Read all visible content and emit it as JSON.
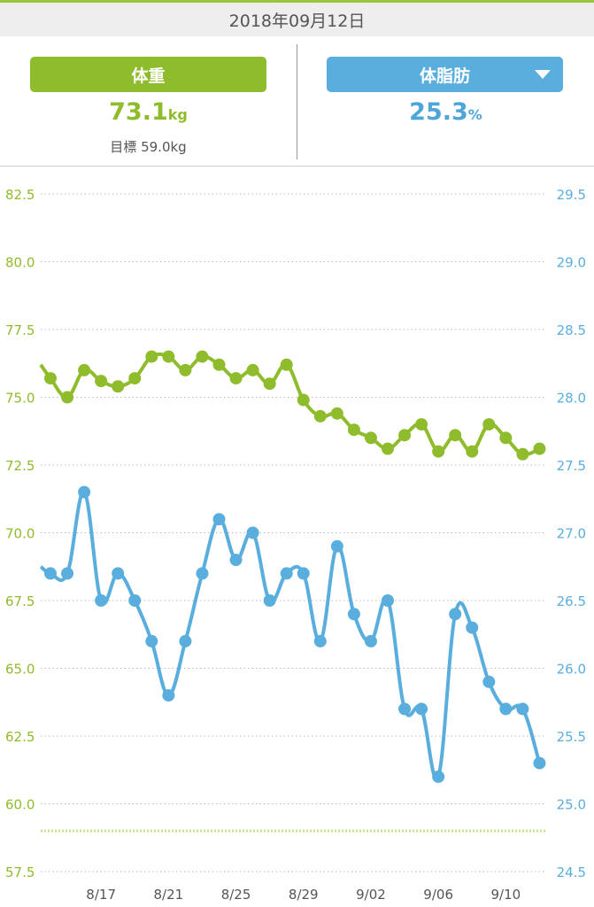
{
  "date_bar": "2018年09月12日",
  "weight": {
    "label": "体重",
    "value": "73.1",
    "unit": "kg",
    "goal_label": "目標",
    "goal_value": "59.0kg"
  },
  "body_fat": {
    "label": "体脂肪",
    "value": "25.3",
    "unit": "%",
    "dropdown_icon": "caret-down-icon"
  },
  "colors": {
    "weight": "#8fbc2c",
    "body_fat": "#5aaede",
    "grid": "#bbbbbb",
    "goal_line": "#c8df8c"
  },
  "chart_data": {
    "type": "line",
    "x": [
      "8/14",
      "8/15",
      "8/16",
      "8/17",
      "8/18",
      "8/19",
      "8/20",
      "8/21",
      "8/22",
      "8/23",
      "8/24",
      "8/25",
      "8/26",
      "8/27",
      "8/28",
      "8/29",
      "8/30",
      "8/31",
      "9/01",
      "9/02",
      "9/03",
      "9/04",
      "9/05",
      "9/06",
      "9/07",
      "9/08",
      "9/09",
      "9/10",
      "9/11",
      "9/12"
    ],
    "x_tick_labels": [
      "8/17",
      "8/21",
      "8/25",
      "8/29",
      "9/02",
      "9/06",
      "9/10"
    ],
    "series": [
      {
        "axis": "left",
        "values": [
          75.7,
          75.0,
          76.0,
          75.6,
          75.4,
          75.7,
          76.5,
          76.5,
          76.0,
          76.5,
          76.2,
          75.7,
          76.0,
          75.5,
          76.2,
          74.9,
          74.3,
          74.4,
          73.8,
          73.5,
          73.1,
          73.6,
          74.0,
          73.0,
          73.6,
          73.0,
          74.0,
          73.5,
          72.9,
          73.1
        ]
      },
      {
        "axis": "right",
        "values": [
          26.7,
          26.7,
          27.3,
          26.5,
          26.7,
          26.5,
          26.2,
          25.8,
          26.2,
          26.7,
          27.1,
          26.8,
          27.0,
          26.5,
          26.7,
          26.7,
          26.2,
          26.9,
          26.4,
          26.2,
          26.5,
          25.7,
          25.7,
          25.2,
          26.4,
          26.3,
          25.9,
          25.7,
          25.7,
          25.3
        ]
      }
    ],
    "y_left": {
      "ticks": [
        "82.5",
        "80.0",
        "77.5",
        "75.0",
        "72.5",
        "70.0",
        "67.5",
        "65.0",
        "62.5",
        "60.0",
        "57.5"
      ],
      "range": [
        57.5,
        82.5
      ]
    },
    "y_right": {
      "ticks": [
        "29.5",
        "29.0",
        "28.5",
        "28.0",
        "27.5",
        "27.0",
        "26.5",
        "26.0",
        "25.5",
        "25.0",
        "24.5"
      ],
      "range": [
        24.5,
        29.5
      ]
    },
    "goal_line": 59.0,
    "grid": true
  }
}
